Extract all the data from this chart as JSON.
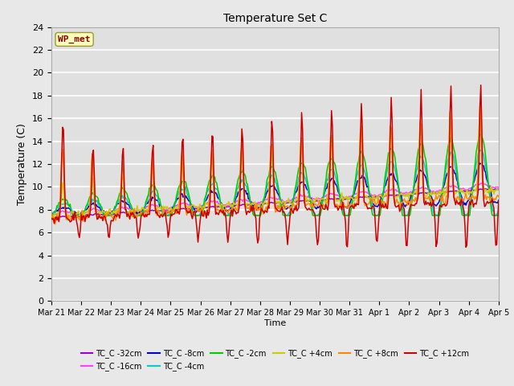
{
  "title": "Temperature Set C",
  "xlabel": "Time",
  "ylabel": "Temperature (C)",
  "ylim": [
    0,
    24
  ],
  "yticks": [
    0,
    2,
    4,
    6,
    8,
    10,
    12,
    14,
    16,
    18,
    20,
    22,
    24
  ],
  "fig_bg_color": "#e8e8e8",
  "ax_bg_color": "#e0e0e0",
  "grid_color": "#ffffff",
  "wp_label": "WP_met",
  "wp_box_facecolor": "#ffffbb",
  "wp_box_edgecolor": "#999933",
  "wp_text_color": "#880000",
  "series": [
    {
      "label": "TC_C -32cm",
      "color": "#9900cc"
    },
    {
      "label": "TC_C -16cm",
      "color": "#ff44ff"
    },
    {
      "label": "TC_C -8cm",
      "color": "#0000cc"
    },
    {
      "label": "TC_C -4cm",
      "color": "#00cccc"
    },
    {
      "label": "TC_C -2cm",
      "color": "#00cc00"
    },
    {
      "label": "TC_C +4cm",
      "color": "#cccc00"
    },
    {
      "label": "TC_C +8cm",
      "color": "#ff8800"
    },
    {
      "label": "TC_C +12cm",
      "color": "#cc0000"
    }
  ],
  "xtick_labels": [
    "Mar 21",
    "Mar 22",
    "Mar 23",
    "Mar 24",
    "Mar 25",
    "Mar 26",
    "Mar 27",
    "Mar 28",
    "Mar 29",
    "Mar 30",
    "Mar 31",
    "Apr 1",
    "Apr 2",
    "Apr 3",
    "Apr 4",
    "Apr 5"
  ],
  "n_points": 480
}
